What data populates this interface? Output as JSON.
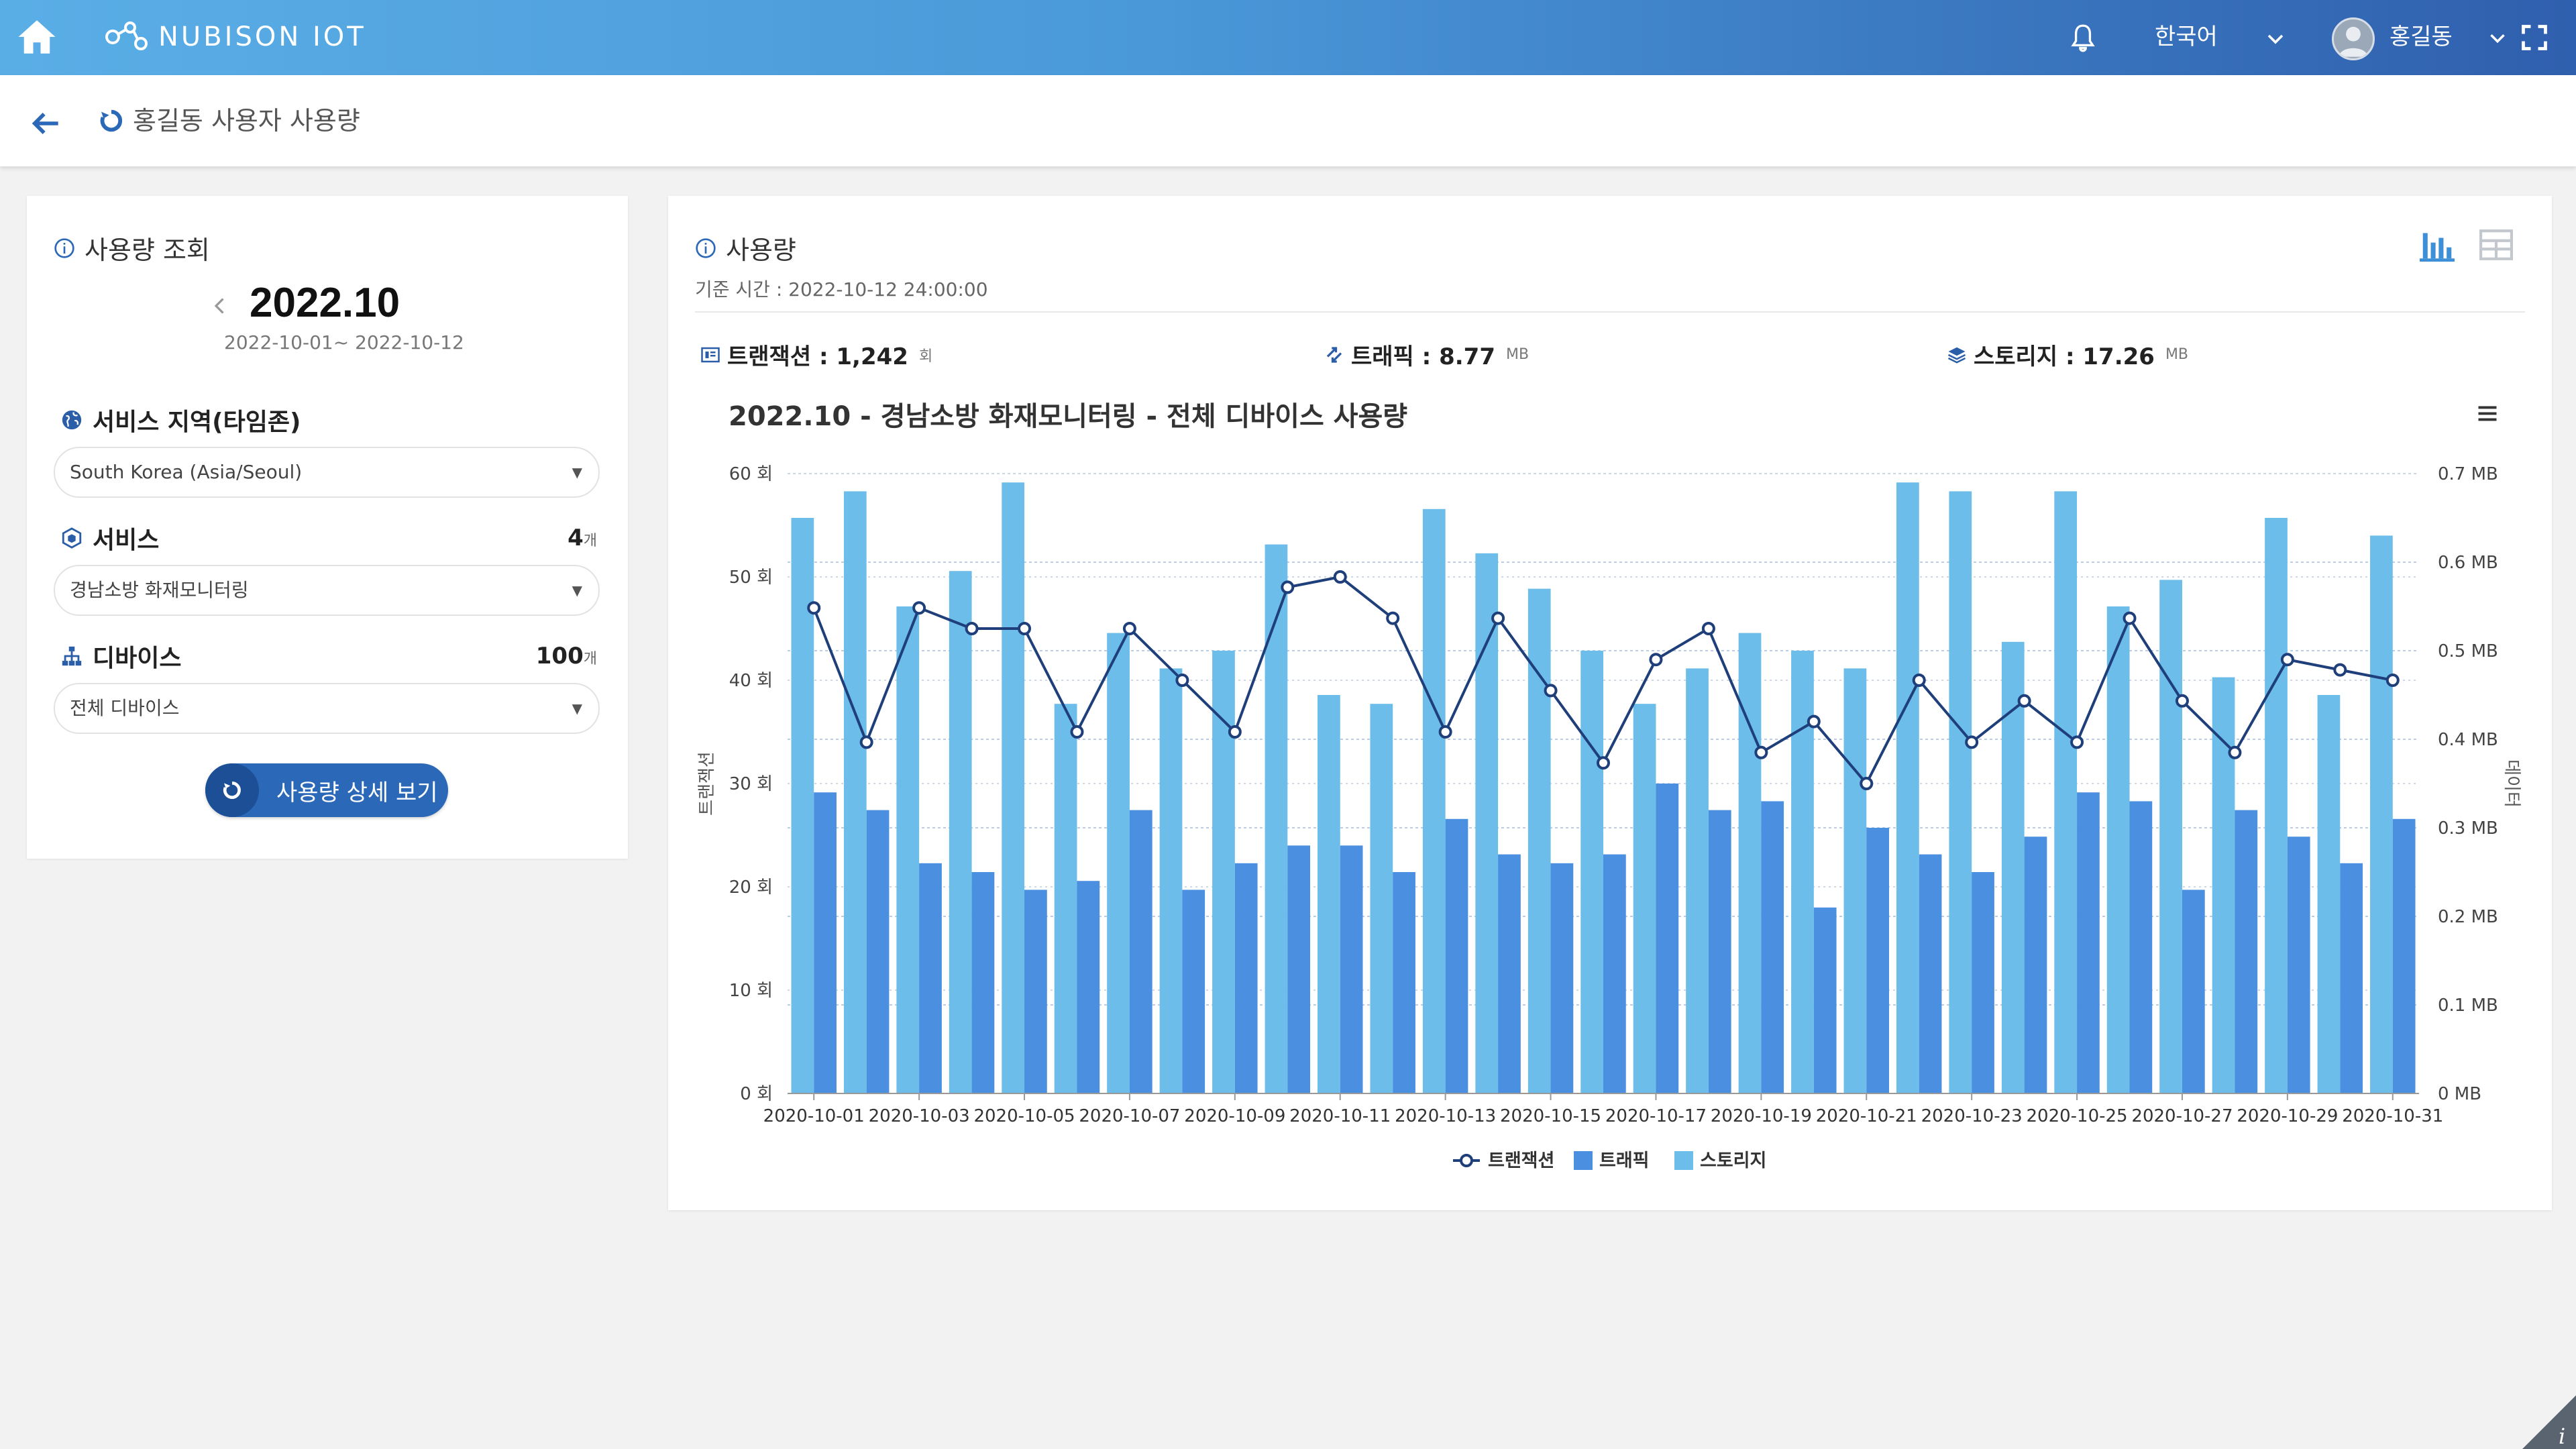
{
  "header": {
    "logo_text": "NUBISON IOT",
    "language": "한국어",
    "user_name": "홍길동"
  },
  "subheader": {
    "title": "홍길동 사용자 사용량"
  },
  "query_panel": {
    "title": "사용량 조회",
    "month": "2022.10",
    "date_range": "2022-10-01~ 2022-10-12",
    "region_label": "서비스 지역(타임존)",
    "region_value": "South Korea (Asia/Seoul)",
    "service_label": "서비스",
    "service_count": "4",
    "service_unit": "개",
    "service_value": "경남소방 화재모니터링",
    "device_label": "디바이스",
    "device_count": "100",
    "device_unit": "개",
    "device_value": "전체 디바이스",
    "detail_button": "사용량 상세 보기"
  },
  "usage_panel": {
    "title": "사용량",
    "base_time": "기준 시간 : 2022-10-12 24:00:00",
    "transaction": "트랜잭션 : 1,242",
    "transaction_unit": "회",
    "traffic": "트래픽 : 8.77",
    "traffic_unit": "MB",
    "storage": "스토리지 : 17.26",
    "storage_unit": "MB"
  },
  "colors": {
    "line": "#1f3f7a",
    "traffic_bar": "#4a8fe0",
    "storage_bar": "#6cbdea"
  },
  "chart_data": {
    "type": "bar",
    "title": "2022.10 - 경남소방 화재모니터링 - 전체 디바이스 사용량",
    "ylabel": "트랜잭션",
    "y2label": "데이터",
    "ylim": [
      0,
      60
    ],
    "y2lim": [
      0,
      0.7
    ],
    "y_ticks": [
      "0 회",
      "10 회",
      "20 회",
      "30 회",
      "40 회",
      "50 회",
      "60 회"
    ],
    "y2_ticks": [
      "0 MB",
      "0.1 MB",
      "0.2 MB",
      "0.3 MB",
      "0.4 MB",
      "0.5 MB",
      "0.6 MB",
      "0.7 MB"
    ],
    "x_tick_labels": [
      "2020-10-01",
      "2020-10-03",
      "2020-10-05",
      "2020-10-07",
      "2020-10-09",
      "2020-10-11",
      "2020-10-13",
      "2020-10-15",
      "2020-10-17",
      "2020-10-19",
      "2020-10-21",
      "2020-10-23",
      "2020-10-25",
      "2020-10-27",
      "2020-10-29",
      "2020-10-31"
    ],
    "categories": [
      "2020-10-01",
      "2020-10-02",
      "2020-10-03",
      "2020-10-04",
      "2020-10-05",
      "2020-10-06",
      "2020-10-07",
      "2020-10-08",
      "2020-10-09",
      "2020-10-10",
      "2020-10-11",
      "2020-10-12",
      "2020-10-13",
      "2020-10-14",
      "2020-10-15",
      "2020-10-16",
      "2020-10-17",
      "2020-10-18",
      "2020-10-19",
      "2020-10-20",
      "2020-10-21",
      "2020-10-22",
      "2020-10-23",
      "2020-10-24",
      "2020-10-25",
      "2020-10-26",
      "2020-10-27",
      "2020-10-28",
      "2020-10-29",
      "2020-10-30",
      "2020-10-31"
    ],
    "legend": [
      "트랜잭션",
      "트래픽",
      "스토리지"
    ],
    "legend_position": "bottom",
    "series": [
      {
        "name": "트랜잭션",
        "type": "line",
        "axis": "left",
        "values": [
          47,
          34,
          47,
          45,
          45,
          35,
          45,
          40,
          35,
          49,
          50,
          46,
          35,
          46,
          39,
          32,
          42,
          45,
          33,
          36,
          30,
          40,
          34,
          38,
          34,
          46,
          38,
          33,
          42,
          41,
          40
        ]
      },
      {
        "name": "트래픽",
        "type": "bar",
        "axis": "right",
        "values": [
          0.34,
          0.32,
          0.26,
          0.25,
          0.23,
          0.24,
          0.32,
          0.23,
          0.26,
          0.28,
          0.28,
          0.25,
          0.31,
          0.27,
          0.26,
          0.27,
          0.35,
          0.32,
          0.33,
          0.21,
          0.3,
          0.27,
          0.25,
          0.29,
          0.34,
          0.33,
          0.23,
          0.32,
          0.29,
          0.26,
          0.31
        ]
      },
      {
        "name": "스토리지",
        "type": "bar",
        "axis": "right",
        "values": [
          0.65,
          0.68,
          0.55,
          0.59,
          0.69,
          0.44,
          0.52,
          0.48,
          0.5,
          0.62,
          0.45,
          0.44,
          0.66,
          0.61,
          0.57,
          0.5,
          0.44,
          0.48,
          0.52,
          0.5,
          0.48,
          0.69,
          0.68,
          0.51,
          0.68,
          0.55,
          0.58,
          0.47,
          0.65,
          0.45,
          0.63
        ]
      }
    ],
    "grid": true
  }
}
